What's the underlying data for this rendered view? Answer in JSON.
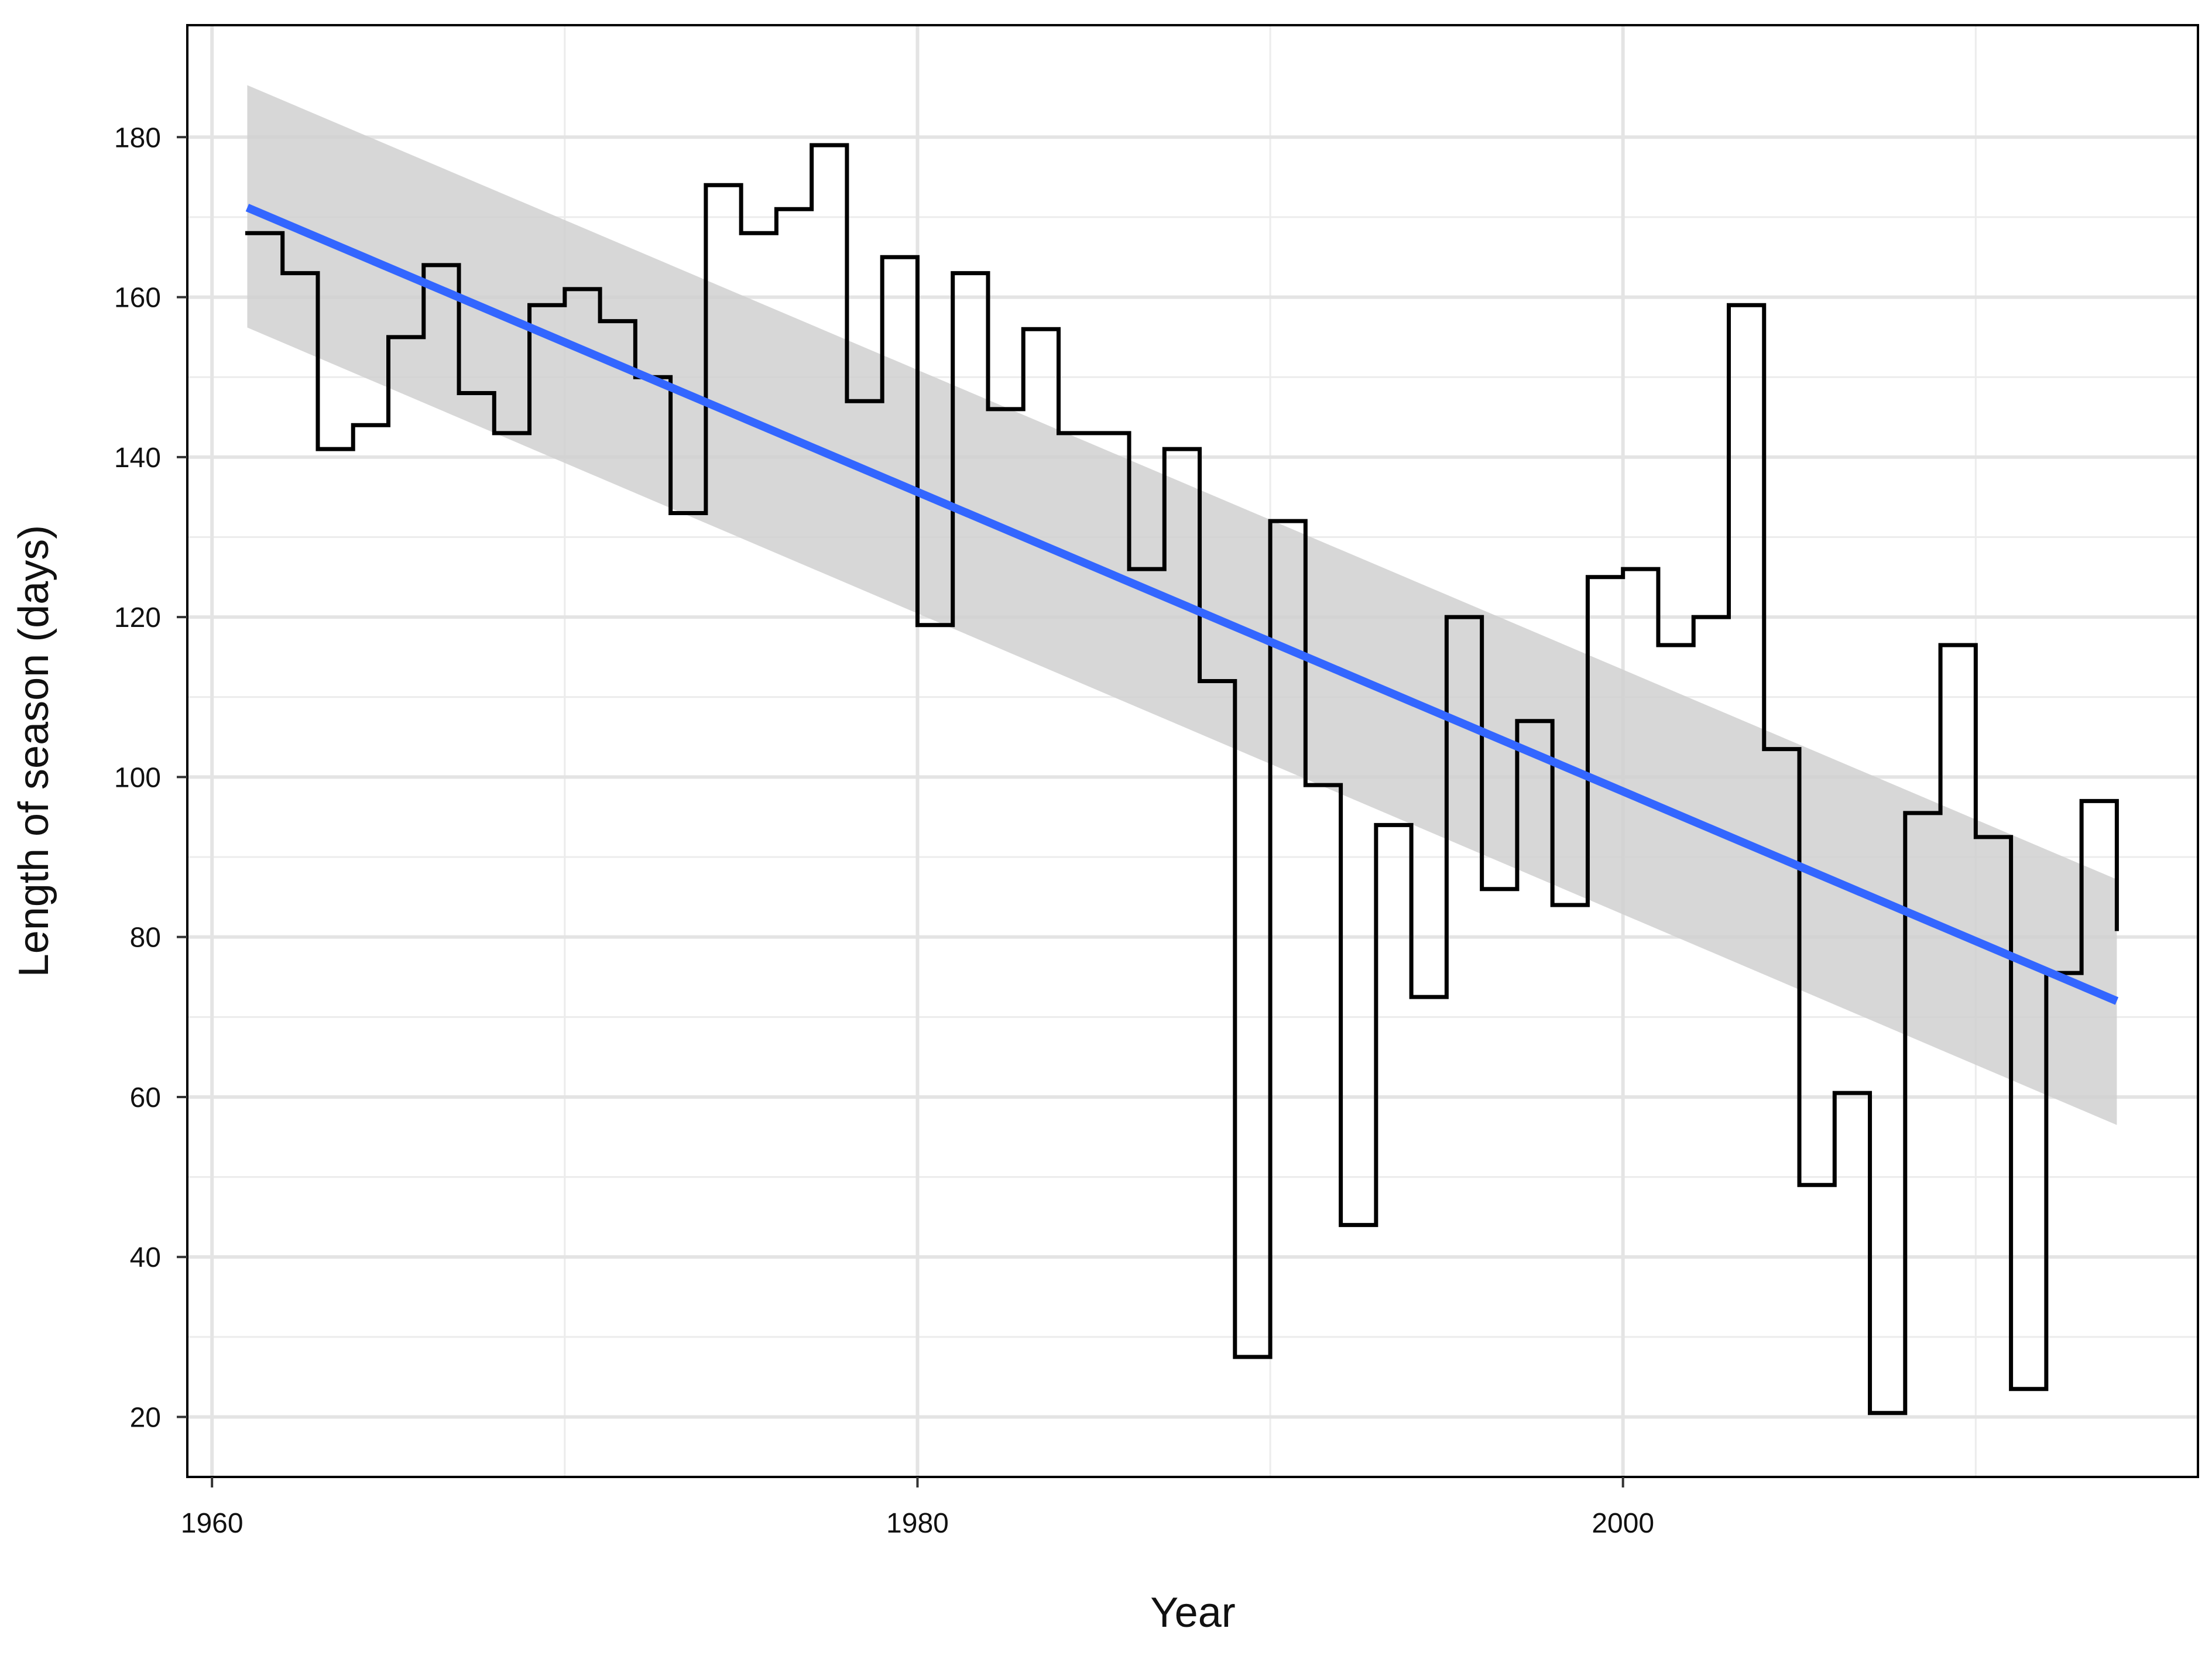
{
  "chart_data": {
    "type": "line",
    "title": "",
    "xlabel": "Year",
    "ylabel": "Length of season (days)",
    "xlim": [
      1959.3,
      2016.3
    ],
    "ylim": [
      12.5,
      194
    ],
    "x_ticks": [
      1960,
      1980,
      2000
    ],
    "y_ticks": [
      20,
      40,
      60,
      80,
      100,
      120,
      140,
      160,
      180
    ],
    "x_minor_ticks": [
      1970,
      1990,
      2010
    ],
    "y_minor_ticks": [
      30,
      50,
      70,
      90,
      110,
      130,
      150,
      170
    ],
    "grid": true,
    "legend": "none",
    "series": [
      {
        "style": "step",
        "color": "#000000",
        "x": [
          1961,
          1962,
          1963,
          1964,
          1965,
          1966,
          1967,
          1968,
          1969,
          1970,
          1971,
          1972,
          1973,
          1974,
          1975,
          1976,
          1977,
          1978,
          1979,
          1980,
          1981,
          1982,
          1983,
          1984,
          1985,
          1986,
          1987,
          1988,
          1989,
          1990,
          1991,
          1992,
          1993,
          1994,
          1995,
          1996,
          1997,
          1998,
          1999,
          2000,
          2001,
          2002,
          2003,
          2004,
          2005,
          2006,
          2007,
          2008,
          2009,
          2010,
          2011,
          2012,
          2013,
          2014
        ],
        "y": [
          168,
          163,
          141,
          144,
          155,
          164,
          148,
          143,
          159,
          161,
          157,
          150,
          133,
          174,
          168,
          171,
          179,
          147,
          165,
          119,
          163,
          146,
          156,
          143,
          143,
          126,
          141,
          112,
          27.5,
          132,
          99,
          44,
          94,
          72.5,
          120,
          86,
          107,
          84,
          125,
          126,
          116.5,
          120,
          159,
          103.5,
          49,
          60.5,
          20.5,
          95.5,
          116.5,
          92.5,
          23.5,
          75.5,
          97,
          81
        ]
      },
      {
        "style": "trend",
        "color": "#3366FF",
        "x": [
          1961,
          2014
        ],
        "y": [
          171.2,
          72.0
        ],
        "ribbon_color": "#D0D0D0",
        "ribbon_upper": [
          186.5,
          87.2
        ],
        "ribbon_lower": [
          156.2,
          56.5
        ]
      }
    ]
  }
}
